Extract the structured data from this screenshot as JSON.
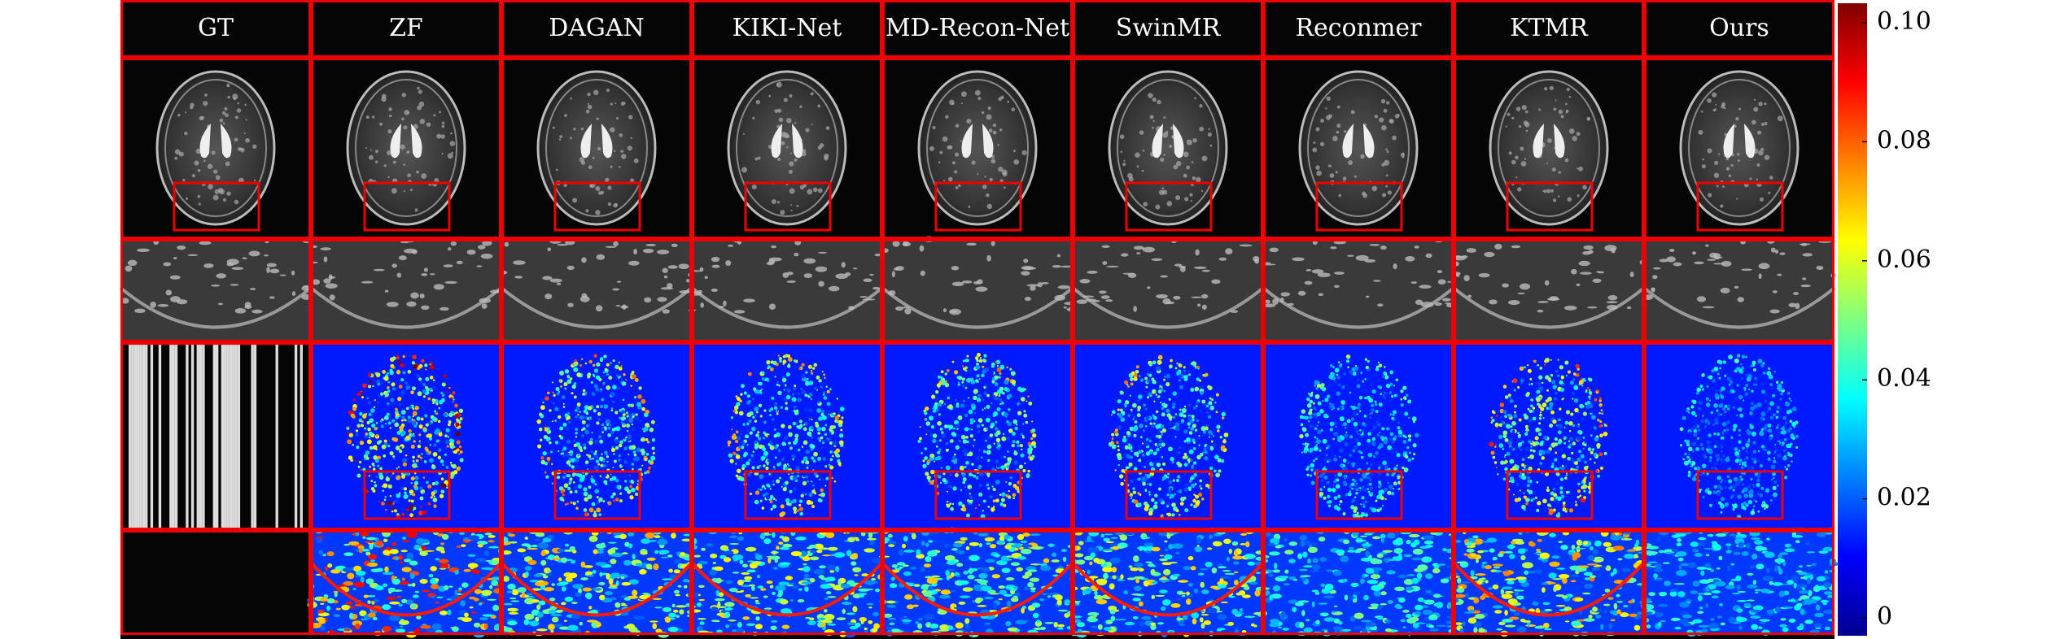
{
  "columns": [
    "GT",
    "ZF",
    "DAGAN",
    "KIKI-Net",
    "MD-Recon-Net",
    "SwinMR",
    "Reconmer",
    "KTMR",
    "Ours"
  ],
  "colorbar": {
    "lim": [
      0,
      0.1
    ],
    "ticks": [
      0,
      0.02,
      0.04,
      0.06,
      0.08,
      {
        "value": 0.1,
        "label": "0.10"
      }
    ]
  }
}
